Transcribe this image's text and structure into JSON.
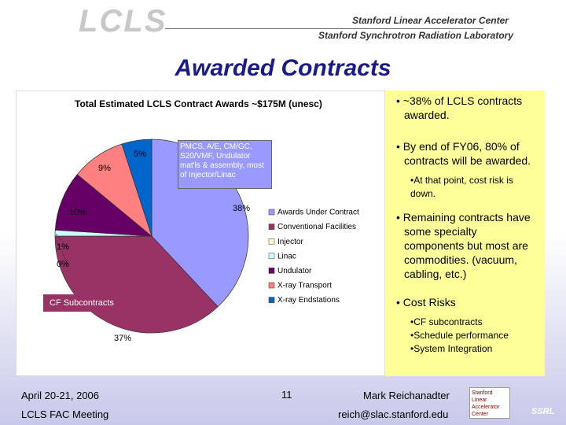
{
  "header": {
    "logo": "LCLS",
    "org1": "Stanford Linear Accelerator Center",
    "org2": "Stanford Synchrotron Radiation Laboratory"
  },
  "title": "Awarded Contracts",
  "bullets": [
    {
      "text": "• ~38% of LCLS contracts awarded.",
      "sub": []
    },
    {
      "text": "• By end of FY06, 80% of contracts will be awarded.",
      "sub": [
        "•At that point, cost risk is down."
      ]
    },
    {
      "text": "• Remaining contracts have some specialty components but most are commodities. (vacuum, cabling, etc.)",
      "sub": []
    },
    {
      "text": "• Cost Risks",
      "sub": [
        "•CF subcontracts",
        "•Schedule performance",
        "•System Integration"
      ]
    }
  ],
  "footer": {
    "date": "April 20-21, 2006",
    "meeting": "LCLS FAC Meeting",
    "page": "11",
    "author": "Mark Reichanadter",
    "email": "reich@slac.stanford.edu",
    "logo1": "Stanford Linear Accelerator Center",
    "logo2": "SSRL"
  },
  "chart_data": {
    "type": "pie",
    "title": "Total Estimated LCLS Contract Awards ~$175M (unesc)",
    "categories": [
      "Awards Under Contract",
      "Conventional Facilities",
      "Injector",
      "Linac",
      "Undulator",
      "X-ray Transport",
      "X-ray Endstations"
    ],
    "values": [
      38,
      37,
      0,
      1,
      10,
      9,
      5
    ],
    "value_labels": [
      "38%",
      "37%",
      "0%",
      "1%",
      "10%",
      "9%",
      "5%"
    ],
    "colors": [
      "#9999ff",
      "#993366",
      "#ffffcc",
      "#ccffff",
      "#660066",
      "#ff8080",
      "#0066cc"
    ],
    "annotations": [
      "PMCS, A/E, CM/GC, S20/VMF, Undulator mat'ls & assembly, most of Injector/Linac",
      "CF Subcontracts"
    ],
    "legend": "right"
  }
}
